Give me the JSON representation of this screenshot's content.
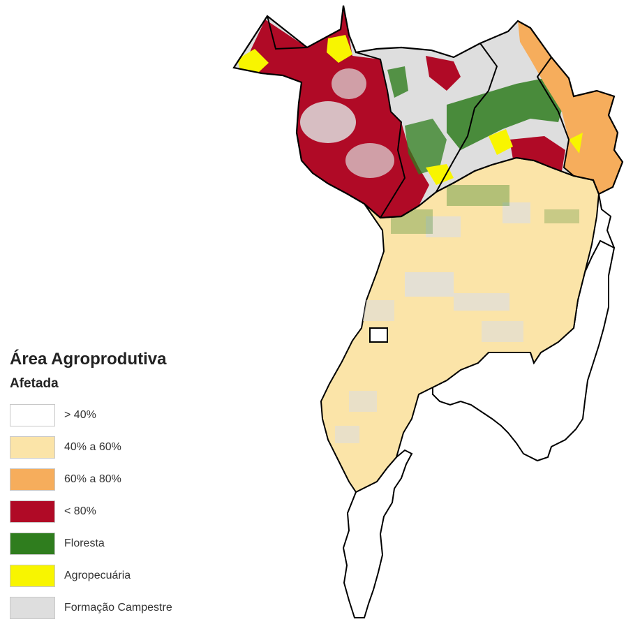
{
  "legend": {
    "title": "Área Agroprodutiva",
    "subtitle": "Afetada",
    "items": [
      {
        "label": "> 40%",
        "color": "#ffffff"
      },
      {
        "label": "40% a 60%",
        "color": "#fbe4a8"
      },
      {
        "label": "60% a 80%",
        "color": "#f6ad5c"
      },
      {
        "label": "< 80%",
        "color": "#b00a26"
      },
      {
        "label": "Floresta",
        "color": "#2f7d1e"
      },
      {
        "label": "Agropecuária",
        "color": "#f8f500"
      },
      {
        "label": "Formação Campestre",
        "color": "#dedede"
      }
    ]
  }
}
